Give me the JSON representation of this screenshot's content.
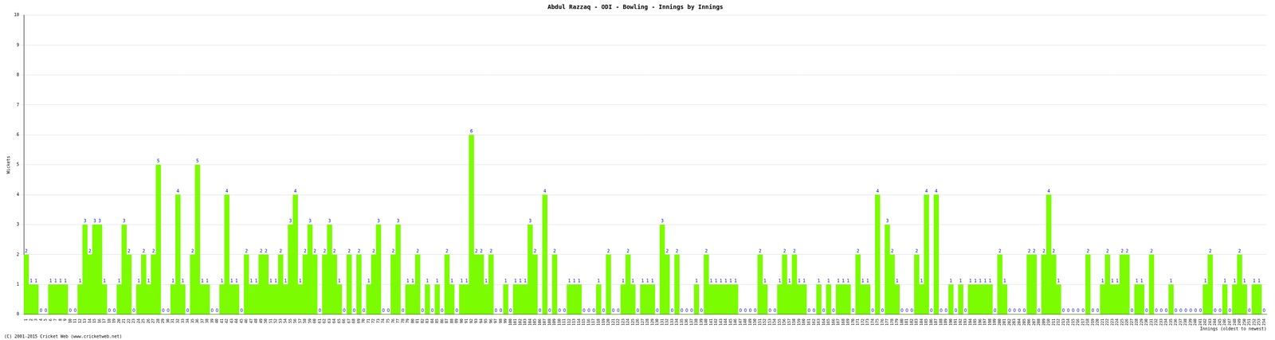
{
  "chart_data": {
    "type": "bar",
    "title": "Abdul Razzaq - ODI - Bowling - Innings by Innings",
    "x_label": "Innings (oldest to newest)",
    "y_label": "Wickets",
    "footer": "(C) 2001-2015 Cricket Web (www.cricketweb.net)",
    "categories": [
      1,
      2,
      3,
      4,
      5,
      6,
      7,
      8,
      9,
      10,
      11,
      12,
      13,
      14,
      15,
      16,
      17,
      18,
      19,
      20,
      21,
      22,
      23,
      24,
      25,
      26,
      27,
      28,
      29,
      30,
      31,
      32,
      33,
      34,
      35,
      36,
      37,
      38,
      39,
      40,
      41,
      42,
      43,
      44,
      45,
      46,
      47,
      48,
      49,
      50,
      51,
      52,
      53,
      54,
      55,
      56,
      57,
      58,
      59,
      60,
      61,
      62,
      63,
      64,
      65,
      66,
      67,
      68,
      69,
      70,
      71,
      72,
      73,
      74,
      75,
      76,
      77,
      78,
      79,
      80,
      81,
      82,
      83,
      84,
      85,
      86,
      87,
      88,
      89,
      90,
      91,
      92,
      93,
      94,
      95,
      96,
      97,
      98,
      99,
      100,
      101,
      102,
      103,
      104,
      105,
      106,
      107,
      108,
      109,
      110,
      111,
      112,
      113,
      114,
      115,
      116,
      117,
      118,
      119,
      120,
      121,
      122,
      123,
      124,
      125,
      126,
      127,
      128,
      129,
      130,
      131,
      132,
      133,
      134,
      135,
      136,
      137,
      138,
      139,
      140,
      141,
      142,
      143,
      144,
      145,
      146,
      147,
      148,
      149,
      150,
      151,
      152,
      153,
      154,
      155,
      156,
      157,
      158,
      159,
      160,
      161,
      162,
      163,
      164,
      165,
      166,
      167,
      168,
      169,
      170,
      171,
      172,
      173,
      174,
      175,
      176,
      177,
      178,
      179,
      180,
      181,
      182,
      183,
      184,
      185,
      186,
      187,
      188,
      189,
      190,
      191,
      192,
      193,
      194,
      195,
      196,
      197,
      198,
      199,
      200,
      201,
      202,
      203,
      204,
      205,
      206,
      207,
      208,
      209,
      210,
      211,
      212,
      213,
      214,
      215,
      216,
      217,
      218,
      219,
      220,
      221,
      222,
      223,
      224,
      225,
      226,
      227,
      228,
      229,
      230,
      231,
      232,
      233,
      234,
      235,
      236,
      237,
      238,
      239,
      240,
      241,
      242,
      243,
      244,
      245,
      246,
      247,
      248,
      249,
      250,
      251,
      252,
      253,
      254
    ],
    "values": [
      2,
      1,
      1,
      0,
      0,
      1,
      1,
      1,
      1,
      0,
      0,
      1,
      3,
      2,
      3,
      3,
      1,
      0,
      0,
      1,
      3,
      2,
      0,
      1,
      2,
      1,
      2,
      5,
      0,
      0,
      1,
      4,
      1,
      0,
      2,
      5,
      1,
      1,
      0,
      0,
      1,
      4,
      1,
      1,
      0,
      2,
      1,
      1,
      2,
      2,
      1,
      1,
      2,
      1,
      3,
      4,
      1,
      2,
      3,
      2,
      0,
      2,
      3,
      2,
      1,
      0,
      2,
      0,
      2,
      0,
      1,
      2,
      3,
      0,
      0,
      2,
      3,
      0,
      1,
      1,
      2,
      0,
      1,
      0,
      1,
      0,
      2,
      1,
      0,
      1,
      1,
      6,
      2,
      2,
      1,
      2,
      0,
      0,
      1,
      0,
      1,
      1,
      1,
      3,
      2,
      0,
      4,
      0,
      2,
      0,
      0,
      1,
      1,
      1,
      0,
      0,
      0,
      1,
      0,
      2,
      0,
      0,
      1,
      2,
      1,
      0,
      1,
      1,
      1,
      0,
      3,
      2,
      0,
      2,
      0,
      0,
      0,
      1,
      0,
      2,
      1,
      1,
      1,
      1,
      1,
      1,
      0,
      0,
      0,
      0,
      2,
      1,
      0,
      0,
      1,
      2,
      1,
      2,
      1,
      1,
      0,
      0,
      1,
      0,
      1,
      0,
      1,
      1,
      1,
      0,
      2,
      1,
      1,
      0,
      4,
      0,
      3,
      2,
      1,
      0,
      0,
      0,
      2,
      1,
      4,
      0,
      4,
      0,
      0,
      1,
      0,
      1,
      0,
      1,
      1,
      1,
      1,
      1,
      0,
      2,
      1,
      0,
      0,
      0,
      0,
      2,
      2,
      0,
      2,
      4,
      2,
      1,
      0,
      0,
      0,
      0,
      0,
      2,
      0,
      0,
      1,
      2,
      1,
      1,
      2,
      2,
      0,
      1,
      1,
      0,
      2,
      0,
      0,
      0,
      1,
      0,
      0,
      0,
      0,
      0,
      0,
      1,
      2,
      0,
      0,
      1,
      0,
      1,
      2,
      1,
      0,
      1,
      1,
      0
    ],
    "color": "#7cfc00",
    "ylim": [
      0,
      10
    ],
    "yticks": [
      0,
      1,
      2,
      3,
      4,
      5,
      6,
      7,
      8,
      9,
      10
    ],
    "grid": true,
    "data_labels": true
  }
}
